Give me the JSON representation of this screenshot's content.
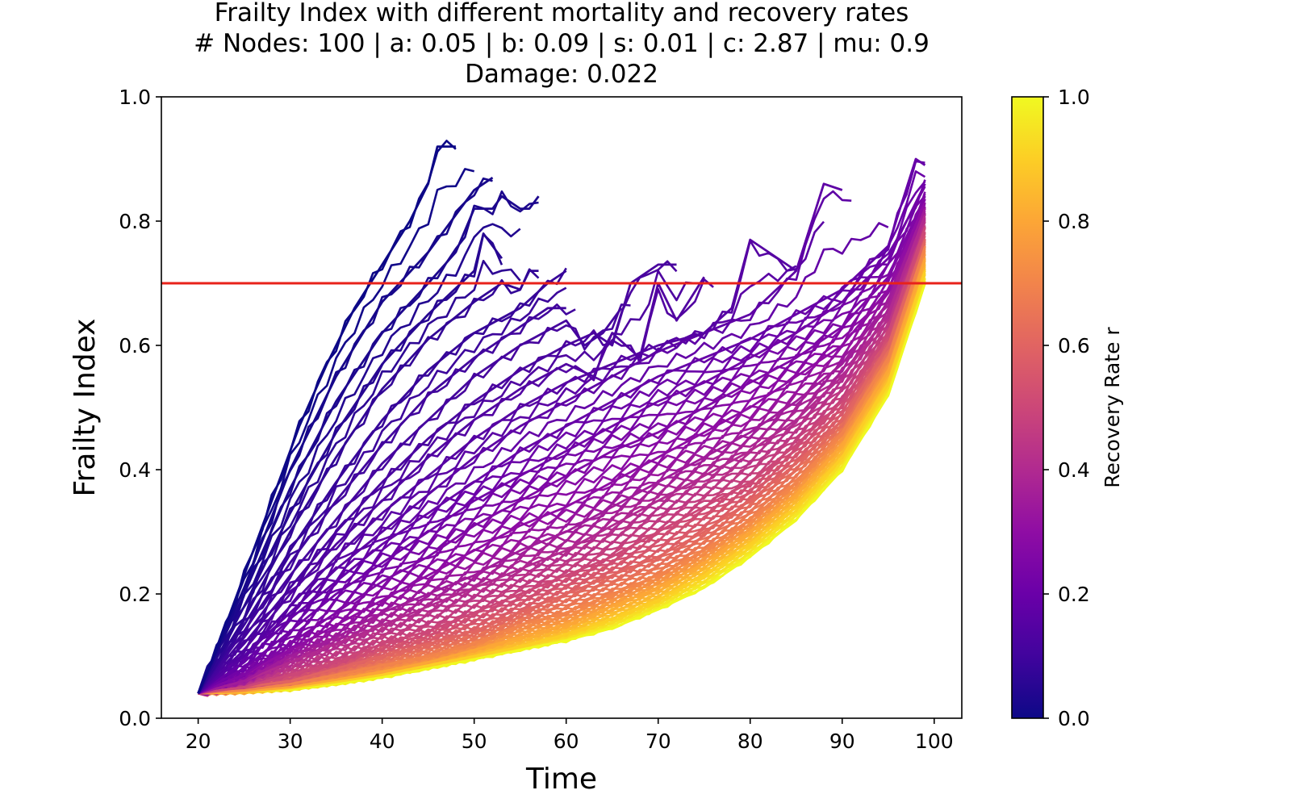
{
  "chart_data": {
    "type": "line",
    "title": [
      "Frailty Index with different mortality and recovery rates",
      "# Nodes: 100 | a: 0.05 | b: 0.09 | s: 0.01 | c: 2.87 | mu: 0.9",
      "Damage: 0.022"
    ],
    "xlabel": "Time",
    "ylabel": "Frailty Index",
    "xlim": [
      16,
      103
    ],
    "ylim": [
      0.0,
      1.0
    ],
    "xticks": [
      "20",
      "30",
      "40",
      "50",
      "60",
      "70",
      "80",
      "90",
      "100"
    ],
    "yticks": [
      "0.0",
      "0.2",
      "0.4",
      "0.6",
      "0.8",
      "1.0"
    ],
    "grid": false,
    "colormap": "plasma",
    "colorbar": {
      "label": "Recovery Rate r",
      "range": [
        0.0,
        1.0
      ],
      "ticks": [
        "0.0",
        "0.2",
        "0.4",
        "0.6",
        "0.8",
        "1.0"
      ]
    },
    "threshold_line": {
      "y": 0.7,
      "color": "#e8221a"
    },
    "series_description": "Family of frailty index trajectories from t=20 to death or t=99, one per recovery rate r in [0,1]; low r rises fast and dies early, high r stays low.",
    "series": [
      {
        "r": 0.0,
        "x": [
          20,
          22,
          25,
          28,
          31,
          34,
          37,
          40,
          43,
          45,
          46,
          48
        ],
        "values": [
          0.04,
          0.11,
          0.23,
          0.35,
          0.47,
          0.57,
          0.66,
          0.73,
          0.8,
          0.86,
          0.92,
          0.92
        ]
      },
      {
        "r": 0.02,
        "x": [
          20,
          25,
          30,
          35,
          40,
          45,
          48,
          50,
          51,
          52
        ],
        "values": [
          0.04,
          0.21,
          0.4,
          0.55,
          0.67,
          0.75,
          0.81,
          0.85,
          0.86,
          0.87
        ]
      },
      {
        "r": 0.03,
        "x": [
          20,
          25,
          30,
          35,
          40,
          45,
          48,
          50,
          52,
          53,
          55,
          56,
          57
        ],
        "values": [
          0.04,
          0.2,
          0.37,
          0.51,
          0.62,
          0.7,
          0.75,
          0.82,
          0.82,
          0.84,
          0.82,
          0.82,
          0.84
        ]
      },
      {
        "r": 0.05,
        "x": [
          20,
          25,
          30,
          35,
          40,
          45,
          50,
          51,
          52,
          53
        ],
        "values": [
          0.04,
          0.18,
          0.33,
          0.46,
          0.57,
          0.65,
          0.72,
          0.78,
          0.76,
          0.74
        ]
      },
      {
        "r": 0.07,
        "x": [
          20,
          25,
          30,
          35,
          40,
          45,
          50,
          53,
          55,
          56,
          57
        ],
        "values": [
          0.04,
          0.16,
          0.3,
          0.42,
          0.53,
          0.61,
          0.67,
          0.7,
          0.69,
          0.72,
          0.72
        ]
      },
      {
        "r": 0.08,
        "x": [
          20,
          25,
          30,
          35,
          40,
          45,
          50,
          55,
          58,
          60
        ],
        "values": [
          0.04,
          0.15,
          0.27,
          0.38,
          0.48,
          0.56,
          0.62,
          0.66,
          0.7,
          0.72
        ]
      },
      {
        "r": 0.1,
        "x": [
          20,
          25,
          30,
          35,
          40,
          45,
          50,
          55,
          58,
          60
        ],
        "values": [
          0.04,
          0.14,
          0.25,
          0.35,
          0.44,
          0.52,
          0.58,
          0.63,
          0.66,
          0.66
        ]
      },
      {
        "r": 0.11,
        "x": [
          20,
          25,
          30,
          35,
          40,
          45,
          50,
          55,
          60,
          62,
          64,
          66
        ],
        "values": [
          0.04,
          0.13,
          0.23,
          0.32,
          0.41,
          0.48,
          0.55,
          0.6,
          0.64,
          0.6,
          0.62,
          0.66
        ]
      },
      {
        "r": 0.12,
        "x": [
          20,
          25,
          30,
          35,
          40,
          45,
          50,
          55,
          60,
          63,
          65,
          67,
          70,
          72
        ],
        "values": [
          0.04,
          0.12,
          0.21,
          0.3,
          0.38,
          0.45,
          0.51,
          0.56,
          0.6,
          0.62,
          0.6,
          0.7,
          0.73,
          0.73
        ]
      },
      {
        "r": 0.14,
        "x": [
          20,
          25,
          30,
          35,
          40,
          45,
          50,
          55,
          60,
          63,
          65,
          68,
          70,
          72,
          75
        ],
        "values": [
          0.04,
          0.11,
          0.2,
          0.28,
          0.35,
          0.42,
          0.48,
          0.53,
          0.57,
          0.55,
          0.62,
          0.58,
          0.7,
          0.64,
          0.71
        ]
      },
      {
        "r": 0.15,
        "x": [
          20,
          25,
          30,
          35,
          40,
          45,
          50,
          55,
          60,
          65,
          70,
          75,
          78,
          80,
          82,
          85
        ],
        "values": [
          0.04,
          0.1,
          0.18,
          0.26,
          0.33,
          0.39,
          0.45,
          0.5,
          0.54,
          0.57,
          0.6,
          0.62,
          0.66,
          0.77,
          0.75,
          0.72
        ]
      },
      {
        "r": 0.17,
        "x": [
          20,
          25,
          30,
          35,
          40,
          45,
          50,
          55,
          60,
          65,
          70,
          75,
          80,
          85,
          88,
          90
        ],
        "values": [
          0.04,
          0.1,
          0.17,
          0.24,
          0.3,
          0.36,
          0.42,
          0.47,
          0.51,
          0.55,
          0.59,
          0.62,
          0.65,
          0.72,
          0.86,
          0.85
        ]
      },
      {
        "r": 0.19,
        "x": [
          20,
          25,
          30,
          35,
          40,
          45,
          50,
          55,
          60,
          65,
          70,
          75,
          80,
          85,
          90,
          95,
          98,
          99
        ],
        "values": [
          0.04,
          0.09,
          0.16,
          0.22,
          0.28,
          0.33,
          0.38,
          0.43,
          0.47,
          0.51,
          0.55,
          0.58,
          0.61,
          0.65,
          0.69,
          0.76,
          0.9,
          0.89
        ]
      },
      {
        "r": 0.22,
        "x": [
          20,
          25,
          30,
          35,
          40,
          45,
          50,
          55,
          60,
          65,
          70,
          75,
          80,
          85,
          90,
          95,
          99
        ],
        "values": [
          0.04,
          0.08,
          0.14,
          0.2,
          0.25,
          0.3,
          0.35,
          0.39,
          0.43,
          0.47,
          0.51,
          0.54,
          0.58,
          0.62,
          0.67,
          0.74,
          0.86
        ]
      },
      {
        "r": 0.26,
        "x": [
          20,
          25,
          30,
          35,
          40,
          45,
          50,
          55,
          60,
          65,
          70,
          75,
          80,
          85,
          90,
          95,
          99
        ],
        "values": [
          0.04,
          0.07,
          0.12,
          0.17,
          0.22,
          0.26,
          0.31,
          0.35,
          0.39,
          0.43,
          0.46,
          0.5,
          0.54,
          0.58,
          0.63,
          0.71,
          0.84
        ]
      },
      {
        "r": 0.3,
        "x": [
          20,
          25,
          30,
          35,
          40,
          45,
          50,
          55,
          60,
          65,
          70,
          75,
          80,
          85,
          90,
          95,
          99
        ],
        "values": [
          0.04,
          0.07,
          0.11,
          0.15,
          0.19,
          0.23,
          0.27,
          0.31,
          0.34,
          0.38,
          0.42,
          0.46,
          0.5,
          0.55,
          0.6,
          0.69,
          0.83
        ]
      },
      {
        "r": 0.35,
        "x": [
          20,
          25,
          30,
          35,
          40,
          45,
          50,
          55,
          60,
          65,
          70,
          75,
          80,
          85,
          90,
          95,
          99
        ],
        "values": [
          0.04,
          0.06,
          0.1,
          0.13,
          0.17,
          0.2,
          0.23,
          0.27,
          0.3,
          0.34,
          0.38,
          0.42,
          0.46,
          0.51,
          0.57,
          0.67,
          0.82
        ]
      },
      {
        "r": 0.4,
        "x": [
          20,
          25,
          30,
          35,
          40,
          45,
          50,
          55,
          60,
          65,
          70,
          75,
          80,
          85,
          90,
          95,
          99
        ],
        "values": [
          0.04,
          0.06,
          0.09,
          0.12,
          0.15,
          0.18,
          0.21,
          0.24,
          0.27,
          0.31,
          0.35,
          0.39,
          0.43,
          0.48,
          0.55,
          0.65,
          0.81
        ]
      },
      {
        "r": 0.5,
        "x": [
          20,
          25,
          30,
          35,
          40,
          45,
          50,
          55,
          60,
          65,
          70,
          75,
          80,
          85,
          90,
          95,
          99
        ],
        "values": [
          0.04,
          0.05,
          0.07,
          0.09,
          0.12,
          0.14,
          0.17,
          0.2,
          0.23,
          0.26,
          0.3,
          0.34,
          0.38,
          0.44,
          0.51,
          0.62,
          0.79
        ]
      },
      {
        "r": 0.6,
        "x": [
          20,
          25,
          30,
          35,
          40,
          45,
          50,
          55,
          60,
          65,
          70,
          75,
          80,
          85,
          90,
          95,
          99
        ],
        "values": [
          0.04,
          0.05,
          0.06,
          0.08,
          0.1,
          0.12,
          0.14,
          0.17,
          0.2,
          0.23,
          0.26,
          0.3,
          0.35,
          0.41,
          0.48,
          0.6,
          0.77
        ]
      },
      {
        "r": 0.7,
        "x": [
          20,
          25,
          30,
          35,
          40,
          45,
          50,
          55,
          60,
          65,
          70,
          75,
          80,
          85,
          90,
          95,
          99
        ],
        "values": [
          0.04,
          0.045,
          0.055,
          0.07,
          0.085,
          0.1,
          0.12,
          0.15,
          0.17,
          0.2,
          0.23,
          0.27,
          0.32,
          0.38,
          0.46,
          0.58,
          0.76
        ]
      },
      {
        "r": 0.8,
        "x": [
          20,
          25,
          30,
          35,
          40,
          45,
          50,
          55,
          60,
          65,
          70,
          75,
          80,
          85,
          90,
          95,
          99
        ],
        "values": [
          0.04,
          0.043,
          0.05,
          0.062,
          0.075,
          0.09,
          0.11,
          0.13,
          0.15,
          0.18,
          0.21,
          0.25,
          0.3,
          0.36,
          0.44,
          0.56,
          0.74
        ]
      },
      {
        "r": 0.9,
        "x": [
          20,
          25,
          30,
          35,
          40,
          45,
          50,
          55,
          60,
          65,
          70,
          75,
          80,
          85,
          90,
          95,
          99
        ],
        "values": [
          0.04,
          0.042,
          0.048,
          0.058,
          0.07,
          0.085,
          0.1,
          0.115,
          0.135,
          0.16,
          0.19,
          0.23,
          0.28,
          0.34,
          0.42,
          0.54,
          0.72
        ]
      },
      {
        "r": 1.0,
        "x": [
          20,
          25,
          30,
          35,
          40,
          45,
          50,
          55,
          60,
          65,
          70,
          75,
          80,
          85,
          90,
          95,
          99
        ],
        "values": [
          0.04,
          0.042,
          0.046,
          0.055,
          0.066,
          0.08,
          0.095,
          0.11,
          0.125,
          0.145,
          0.175,
          0.21,
          0.26,
          0.32,
          0.4,
          0.52,
          0.7
        ]
      }
    ]
  }
}
